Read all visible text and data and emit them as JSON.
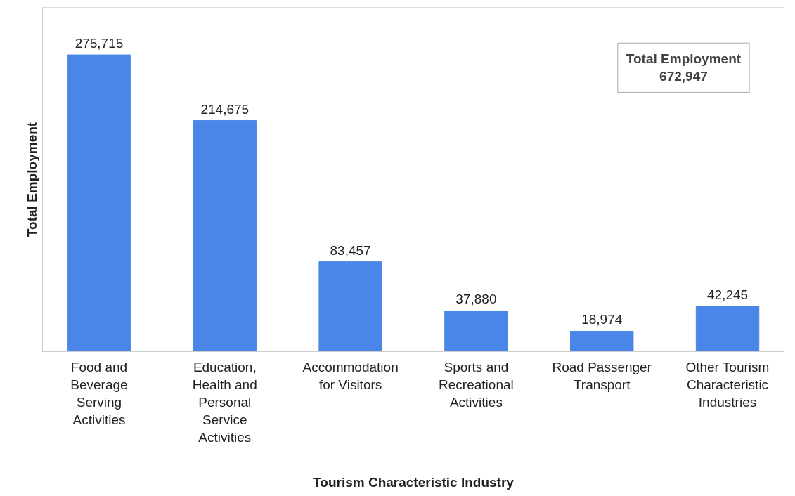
{
  "chart_data": {
    "type": "bar",
    "xlabel": "Tourism Characteristic Industry",
    "ylabel": "Total Employment",
    "categories": [
      "Food and Beverage Serving Activities",
      "Education, Health and Personal Service Activities",
      "Accommodation for Visitors",
      "Sports and Recreational Activities",
      "Road Passenger Transport",
      "Other Tourism Characteristic Industries"
    ],
    "values": [
      275715,
      214675,
      83457,
      37880,
      18974,
      42245
    ],
    "value_labels": [
      "275,715",
      "214,675",
      "83,457",
      "37,880",
      "18,974",
      "42,245"
    ],
    "color": "#4a86e8",
    "grid": false,
    "tick_labels": "x",
    "annotations": [
      "Total Employment\n672,947"
    ]
  }
}
